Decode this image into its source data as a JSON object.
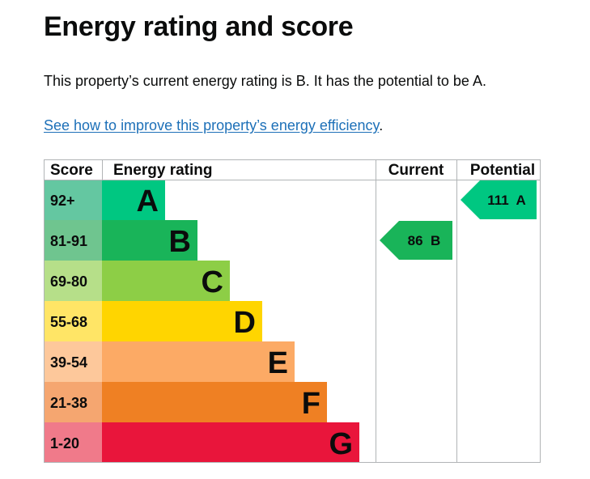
{
  "page": {
    "title": "Energy rating and score",
    "summary": "This property’s current energy rating is B. It has the potential to be A.",
    "link_text": "See how to improve this property’s energy efficiency",
    "link_suffix": "."
  },
  "chart_data": {
    "type": "bar",
    "headers": {
      "score": "Score",
      "rating": "Energy rating",
      "current": "Current",
      "potential": "Potential"
    },
    "bands": [
      {
        "letter": "A",
        "range": "92+",
        "min": 92,
        "max": null,
        "color": "#00c781",
        "score_bg": "#64c7a1"
      },
      {
        "letter": "B",
        "range": "81-91",
        "min": 81,
        "max": 91,
        "color": "#19b459",
        "score_bg": "#6fc58f"
      },
      {
        "letter": "C",
        "range": "69-80",
        "min": 69,
        "max": 80,
        "color": "#8dce46",
        "score_bg": "#b6df89"
      },
      {
        "letter": "D",
        "range": "55-68",
        "min": 55,
        "max": 68,
        "color": "#ffd500",
        "score_bg": "#ffe566"
      },
      {
        "letter": "E",
        "range": "39-54",
        "min": 39,
        "max": 54,
        "color": "#fcaa65",
        "score_bg": "#fdc89b"
      },
      {
        "letter": "F",
        "range": "21-38",
        "min": 21,
        "max": 38,
        "color": "#ef8023",
        "score_bg": "#f5a670"
      },
      {
        "letter": "G",
        "range": "1-20",
        "min": 1,
        "max": 20,
        "color": "#e9153b",
        "score_bg": "#f07a8a"
      }
    ],
    "current": {
      "score": 86,
      "letter": "B",
      "label": "86  B",
      "color": "#19b459"
    },
    "potential": {
      "score": 111,
      "letter": "A",
      "label": "111  A",
      "color": "#00c781"
    }
  }
}
